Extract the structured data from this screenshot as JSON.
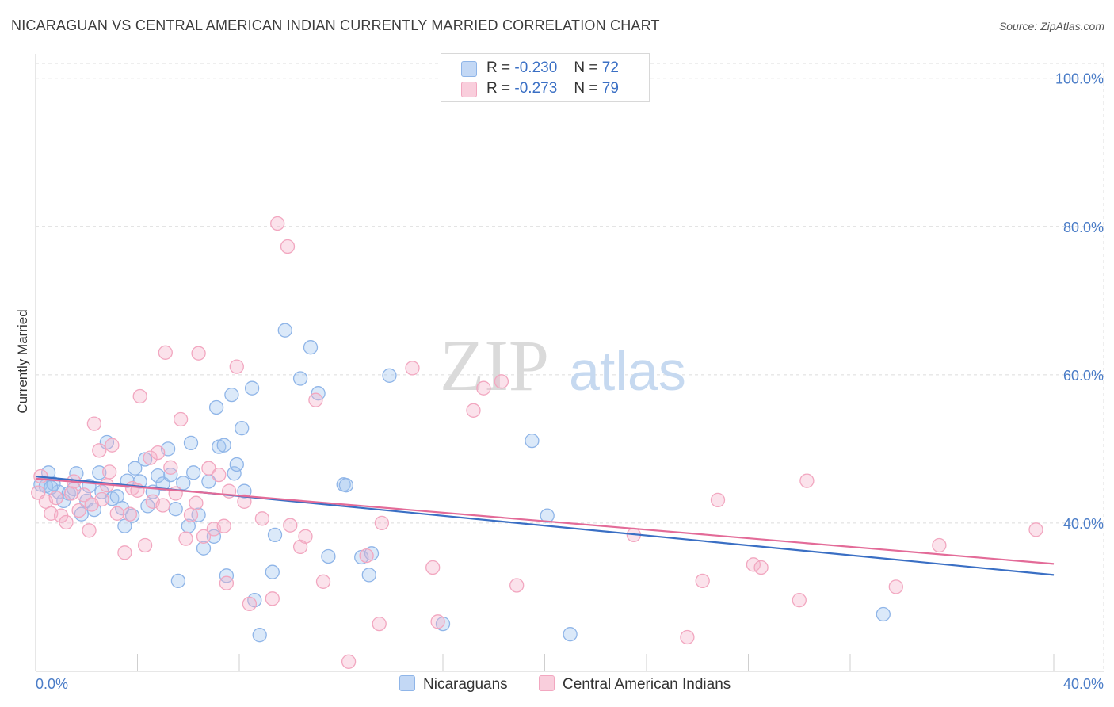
{
  "header": {
    "title": "NICARAGUAN VS CENTRAL AMERICAN INDIAN CURRENTLY MARRIED CORRELATION CHART",
    "source": "Source: ZipAtlas.com"
  },
  "watermark": {
    "zip": "ZIP",
    "atlas": "atlas"
  },
  "legend": {
    "r_label": "R =",
    "n_label": "N =",
    "rows": [
      {
        "r": "-0.230",
        "n": "72"
      },
      {
        "r": "-0.273",
        "n": "79"
      }
    ]
  },
  "chart_data": {
    "type": "scatter",
    "title": "NICARAGUAN VS CENTRAL AMERICAN INDIAN CURRENTLY MARRIED CORRELATION CHART",
    "xlabel": "",
    "ylabel": "Currently Married",
    "xlim": [
      0,
      40
    ],
    "ylim": [
      20,
      102
    ],
    "x_tick_labels": [
      "0.0%",
      "40.0%"
    ],
    "y_ticks": [
      40,
      60,
      80,
      100
    ],
    "y_tick_labels": [
      "40.0%",
      "60.0%",
      "80.0%",
      "100.0%"
    ],
    "grid": true,
    "legend_position": "top-center",
    "series": [
      {
        "name": "Nicaraguans",
        "color": "#8fb5e8",
        "line_color": "#3a6fc4",
        "trend": {
          "x": [
            0,
            40
          ],
          "y": [
            46.3,
            33.0
          ]
        },
        "points": [
          [
            0.2,
            45.2
          ],
          [
            0.4,
            45.0
          ],
          [
            0.5,
            46.8
          ],
          [
            0.7,
            45.3
          ],
          [
            0.9,
            44.2
          ],
          [
            1.1,
            43.0
          ],
          [
            1.3,
            44.0
          ],
          [
            1.6,
            46.7
          ],
          [
            1.8,
            41.2
          ],
          [
            2.0,
            43.0
          ],
          [
            2.3,
            41.8
          ],
          [
            2.5,
            46.8
          ],
          [
            2.6,
            44.2
          ],
          [
            2.8,
            50.9
          ],
          [
            3.0,
            43.3
          ],
          [
            3.2,
            43.6
          ],
          [
            3.4,
            42.0
          ],
          [
            3.5,
            39.6
          ],
          [
            3.6,
            45.7
          ],
          [
            3.8,
            41.0
          ],
          [
            3.9,
            47.4
          ],
          [
            4.1,
            45.6
          ],
          [
            4.3,
            48.6
          ],
          [
            4.4,
            42.3
          ],
          [
            4.6,
            44.2
          ],
          [
            4.8,
            46.4
          ],
          [
            5.0,
            45.3
          ],
          [
            5.2,
            50.0
          ],
          [
            5.3,
            46.5
          ],
          [
            5.5,
            41.9
          ],
          [
            5.6,
            32.2
          ],
          [
            5.8,
            45.4
          ],
          [
            6.0,
            39.6
          ],
          [
            6.1,
            50.8
          ],
          [
            6.2,
            46.8
          ],
          [
            6.4,
            41.1
          ],
          [
            6.6,
            36.6
          ],
          [
            6.8,
            45.6
          ],
          [
            7.0,
            38.2
          ],
          [
            7.1,
            55.6
          ],
          [
            7.2,
            50.3
          ],
          [
            7.4,
            50.5
          ],
          [
            7.5,
            32.9
          ],
          [
            7.7,
            57.3
          ],
          [
            7.8,
            46.7
          ],
          [
            7.9,
            47.9
          ],
          [
            8.1,
            52.8
          ],
          [
            8.2,
            44.3
          ],
          [
            8.5,
            58.2
          ],
          [
            8.6,
            29.6
          ],
          [
            8.8,
            24.9
          ],
          [
            9.3,
            33.4
          ],
          [
            9.4,
            38.4
          ],
          [
            9.8,
            66.0
          ],
          [
            10.4,
            59.5
          ],
          [
            10.8,
            63.7
          ],
          [
            11.1,
            57.5
          ],
          [
            11.5,
            35.5
          ],
          [
            12.1,
            45.2
          ],
          [
            12.2,
            45.1
          ],
          [
            12.8,
            35.4
          ],
          [
            13.1,
            33.0
          ],
          [
            13.2,
            35.9
          ],
          [
            13.9,
            59.9
          ],
          [
            16.0,
            26.4
          ],
          [
            19.5,
            51.1
          ],
          [
            20.1,
            41.0
          ],
          [
            21.0,
            25.0
          ],
          [
            33.3,
            27.7
          ],
          [
            0.6,
            44.8
          ],
          [
            1.5,
            44.6
          ],
          [
            2.1,
            45.0
          ]
        ]
      },
      {
        "name": "Central American Indians",
        "color": "#f2a7c0",
        "line_color": "#e36b98",
        "trend": {
          "x": [
            0,
            40
          ],
          "y": [
            46.0,
            34.5
          ]
        },
        "points": [
          [
            0.1,
            44.1
          ],
          [
            0.2,
            46.3
          ],
          [
            0.4,
            42.9
          ],
          [
            0.6,
            41.3
          ],
          [
            0.8,
            43.4
          ],
          [
            1.0,
            41.0
          ],
          [
            1.2,
            40.1
          ],
          [
            1.4,
            44.0
          ],
          [
            1.5,
            45.6
          ],
          [
            1.7,
            41.7
          ],
          [
            1.9,
            43.8
          ],
          [
            2.1,
            39.0
          ],
          [
            2.3,
            53.4
          ],
          [
            2.5,
            49.8
          ],
          [
            2.6,
            43.2
          ],
          [
            2.8,
            45.1
          ],
          [
            2.9,
            46.9
          ],
          [
            3.0,
            50.5
          ],
          [
            3.2,
            41.3
          ],
          [
            3.5,
            36.0
          ],
          [
            3.7,
            41.2
          ],
          [
            3.8,
            44.7
          ],
          [
            4.0,
            44.4
          ],
          [
            4.1,
            57.1
          ],
          [
            4.3,
            37.0
          ],
          [
            4.5,
            48.8
          ],
          [
            4.6,
            42.9
          ],
          [
            4.8,
            49.5
          ],
          [
            5.0,
            42.4
          ],
          [
            5.1,
            63.0
          ],
          [
            5.3,
            47.5
          ],
          [
            5.5,
            44.0
          ],
          [
            5.7,
            54.0
          ],
          [
            5.9,
            37.9
          ],
          [
            6.1,
            41.1
          ],
          [
            6.3,
            42.7
          ],
          [
            6.4,
            62.9
          ],
          [
            6.6,
            38.2
          ],
          [
            6.8,
            47.4
          ],
          [
            7.0,
            39.2
          ],
          [
            7.2,
            46.5
          ],
          [
            7.5,
            31.9
          ],
          [
            7.6,
            44.3
          ],
          [
            7.9,
            61.1
          ],
          [
            8.2,
            42.9
          ],
          [
            8.4,
            29.1
          ],
          [
            8.9,
            40.6
          ],
          [
            9.3,
            29.8
          ],
          [
            9.5,
            80.4
          ],
          [
            9.9,
            77.3
          ],
          [
            10.0,
            39.7
          ],
          [
            10.4,
            36.8
          ],
          [
            10.6,
            38.2
          ],
          [
            11.0,
            56.6
          ],
          [
            11.3,
            32.1
          ],
          [
            12.3,
            21.3
          ],
          [
            13.0,
            35.6
          ],
          [
            13.5,
            26.4
          ],
          [
            13.6,
            40.0
          ],
          [
            14.8,
            60.9
          ],
          [
            15.6,
            34.0
          ],
          [
            15.8,
            26.7
          ],
          [
            17.2,
            55.2
          ],
          [
            17.6,
            58.2
          ],
          [
            18.3,
            59.1
          ],
          [
            18.9,
            31.6
          ],
          [
            23.5,
            38.4
          ],
          [
            25.6,
            24.6
          ],
          [
            26.2,
            32.2
          ],
          [
            26.8,
            43.1
          ],
          [
            28.2,
            34.4
          ],
          [
            28.5,
            34.0
          ],
          [
            30.0,
            29.6
          ],
          [
            30.3,
            45.7
          ],
          [
            33.8,
            31.4
          ],
          [
            35.5,
            37.0
          ],
          [
            39.3,
            39.1
          ],
          [
            7.4,
            39.6
          ],
          [
            2.2,
            42.5
          ]
        ]
      }
    ]
  }
}
